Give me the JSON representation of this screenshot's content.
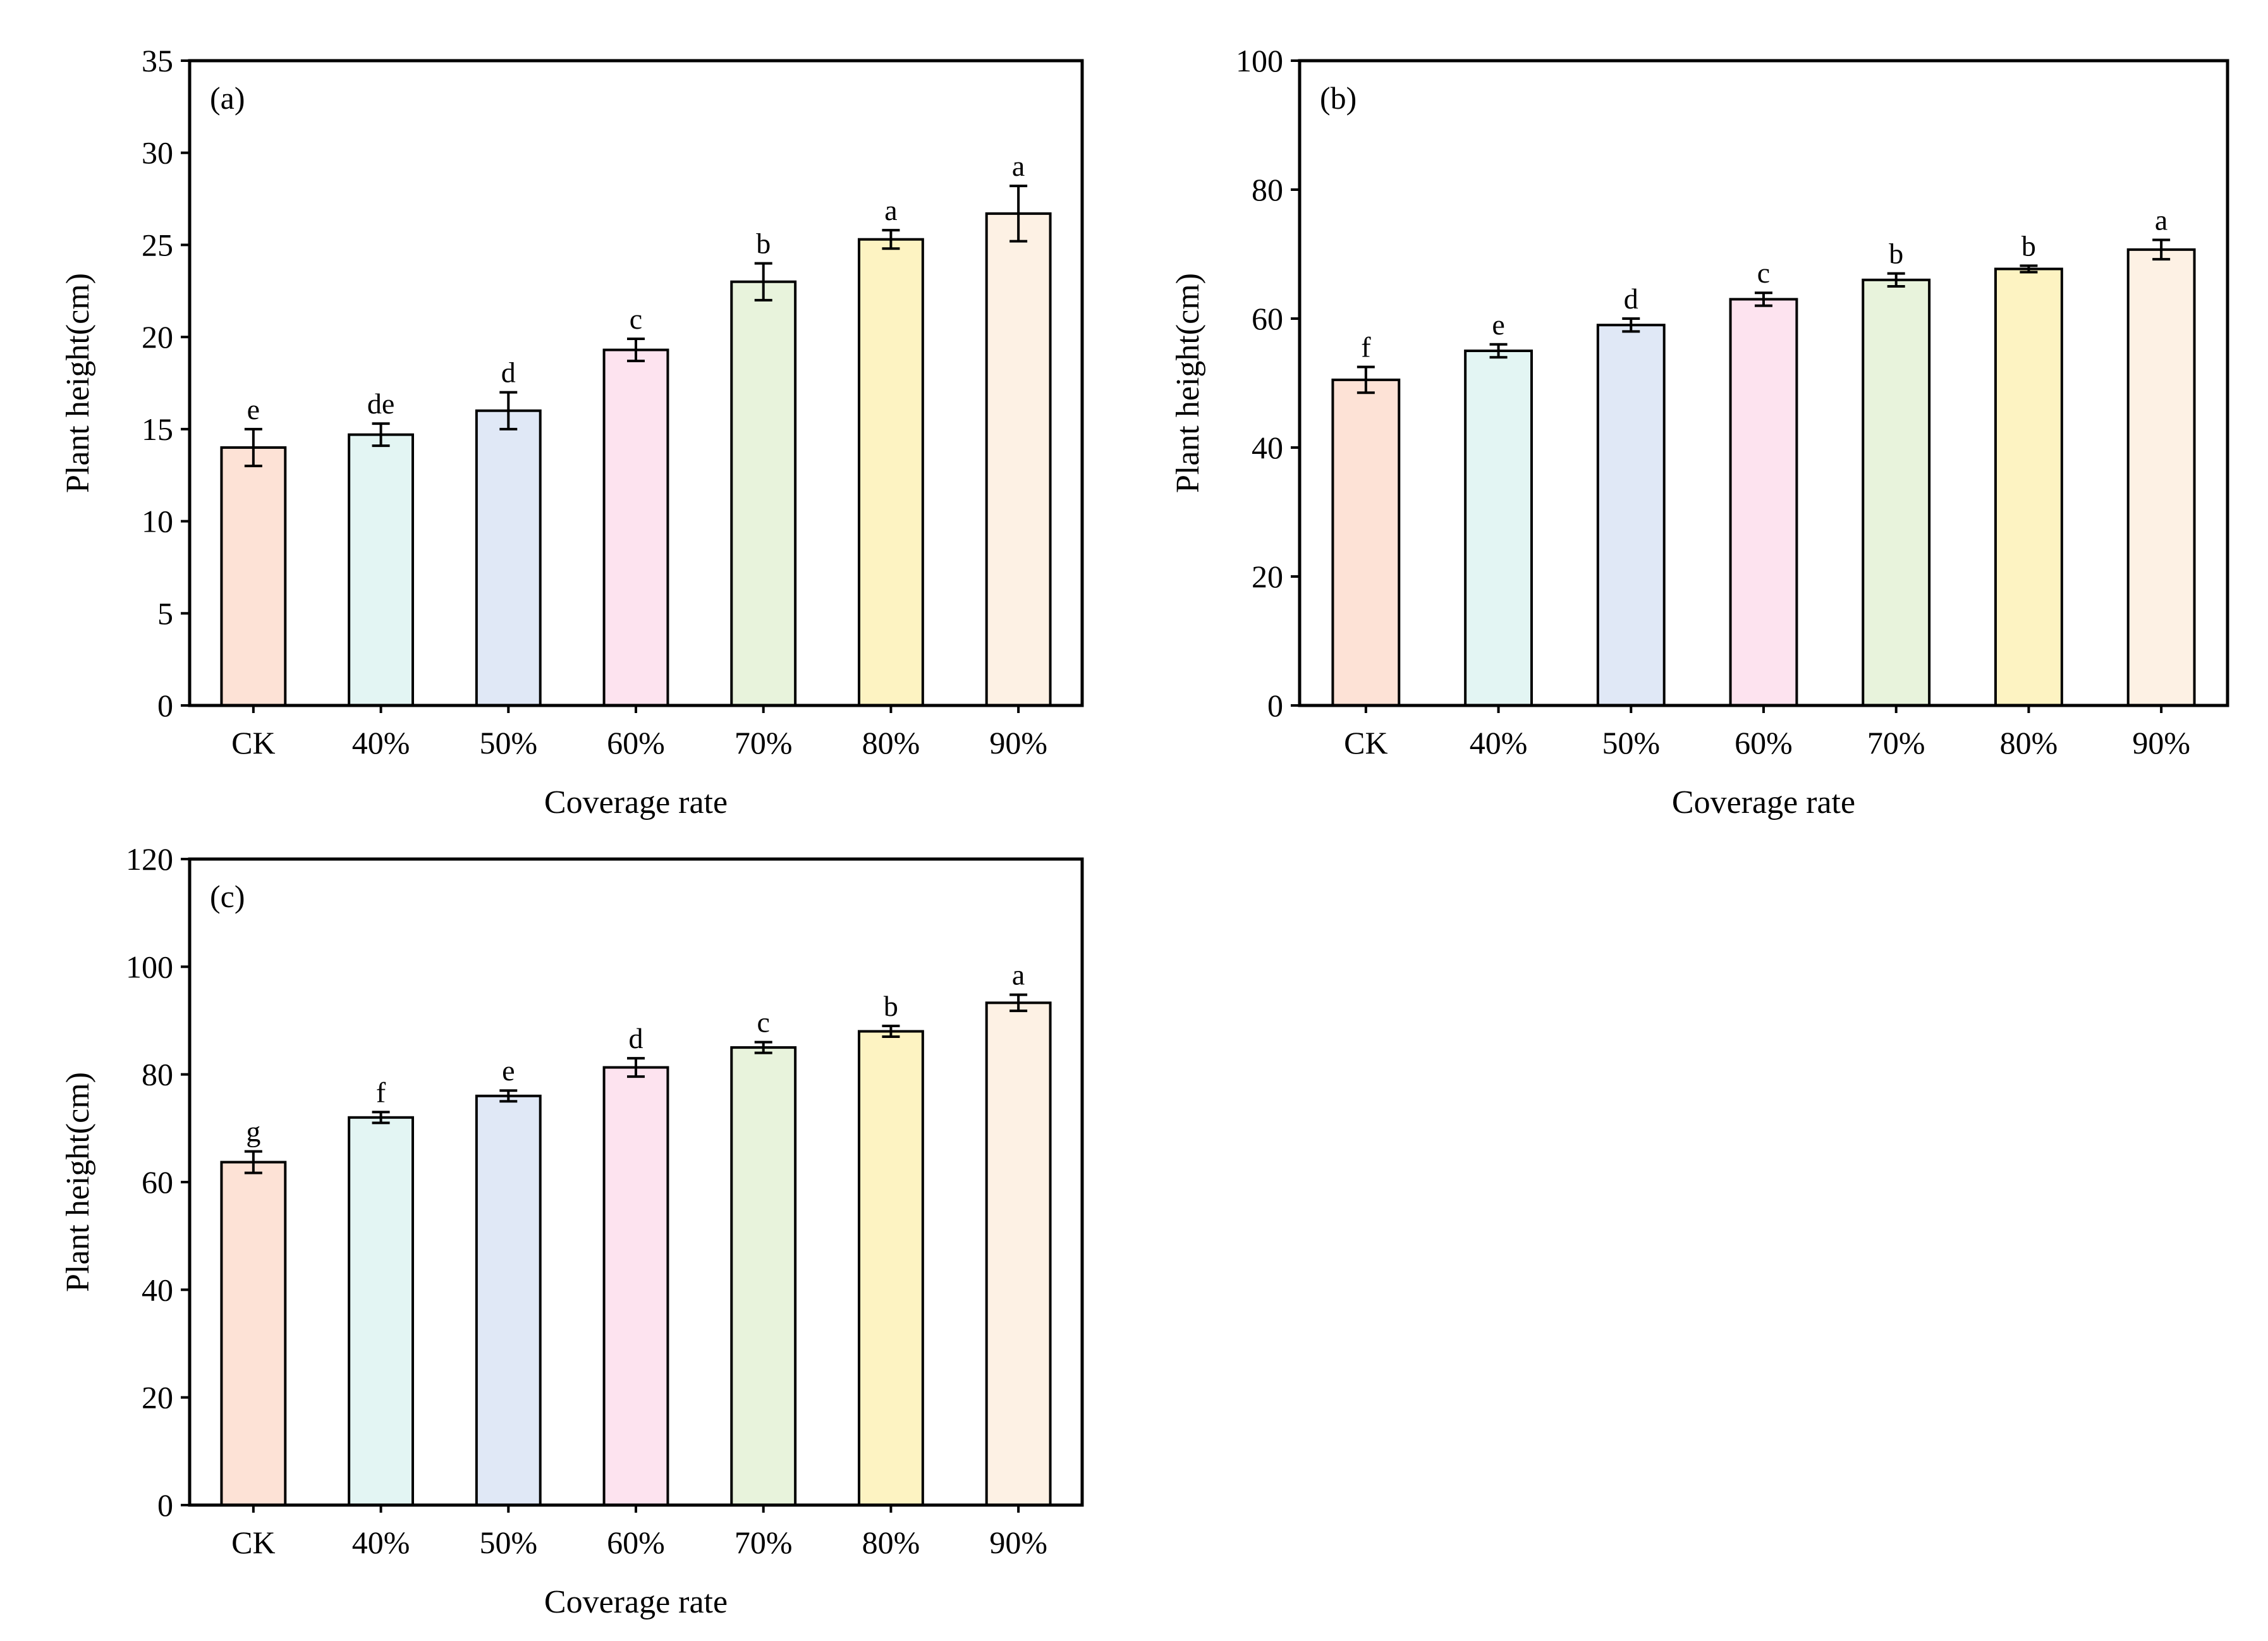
{
  "chart_data": [
    {
      "type": "bar",
      "panel_label": "(a)",
      "title": "",
      "xlabel": "Coverage rate",
      "ylabel": "Plant height(cm)",
      "categories": [
        "CK",
        "40%",
        "50%",
        "60%",
        "70%",
        "80%",
        "90%"
      ],
      "values": [
        14.0,
        14.7,
        16.0,
        19.3,
        23.0,
        25.3,
        26.7
      ],
      "errors": [
        1.0,
        0.6,
        1.0,
        0.6,
        1.0,
        0.5,
        1.5
      ],
      "significance_letters": [
        "e",
        "de",
        "d",
        "c",
        "b",
        "a",
        "a"
      ],
      "ylim": [
        0,
        35
      ],
      "yticks": [
        0,
        5,
        10,
        15,
        20,
        25,
        30,
        35
      ],
      "grid": false
    },
    {
      "type": "bar",
      "panel_label": "(b)",
      "title": "",
      "xlabel": "Coverage rate",
      "ylabel": "Plant height(cm)",
      "categories": [
        "CK",
        "40%",
        "50%",
        "60%",
        "70%",
        "80%",
        "90%"
      ],
      "values": [
        50.5,
        55.0,
        59.0,
        63.0,
        66.0,
        67.7,
        70.7
      ],
      "errors": [
        2.0,
        1.0,
        1.0,
        1.0,
        1.0,
        0.5,
        1.5
      ],
      "significance_letters": [
        "f",
        "e",
        "d",
        "c",
        "b",
        "b",
        "a"
      ],
      "ylim": [
        0,
        100
      ],
      "yticks": [
        0,
        20,
        40,
        60,
        80,
        100
      ],
      "grid": false
    },
    {
      "type": "bar",
      "panel_label": "(c)",
      "title": "",
      "xlabel": "Coverage rate",
      "ylabel": "Plant height(cm)",
      "categories": [
        "CK",
        "40%",
        "50%",
        "60%",
        "70%",
        "80%",
        "90%"
      ],
      "values": [
        63.7,
        72.0,
        76.0,
        81.3,
        85.0,
        88.0,
        93.3
      ],
      "errors": [
        2.0,
        1.0,
        1.0,
        1.7,
        1.0,
        1.0,
        1.5
      ],
      "significance_letters": [
        "g",
        "f",
        "e",
        "d",
        "c",
        "b",
        "a"
      ],
      "ylim": [
        0,
        120
      ],
      "yticks": [
        0,
        20,
        40,
        60,
        80,
        100,
        120
      ],
      "grid": false
    }
  ],
  "colors": {
    "bars": [
      "#fde2d6",
      "#e3f5f3",
      "#e0e8f6",
      "#fde3ef",
      "#e8f3dc",
      "#fdf3c2",
      "#fdf1e4"
    ],
    "outline": "#000000"
  }
}
